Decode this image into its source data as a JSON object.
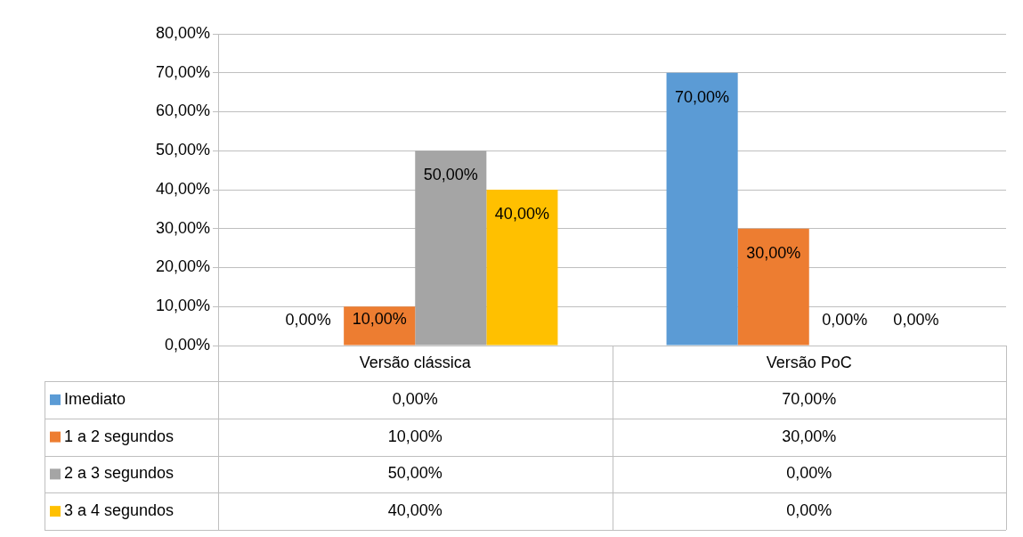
{
  "chart_data": {
    "type": "bar",
    "categories": [
      "Versão clássica",
      "Versão PoC"
    ],
    "series": [
      {
        "name": "Imediato",
        "color": "#5b9bd5",
        "values": [
          0,
          70
        ],
        "value_labels": [
          "0,00%",
          "70,00%"
        ]
      },
      {
        "name": "1 a 2 segundos",
        "color": "#ed7d31",
        "values": [
          10,
          30
        ],
        "value_labels": [
          "10,00%",
          "30,00%"
        ]
      },
      {
        "name": "2 a 3 segundos",
        "color": "#a5a5a5",
        "values": [
          50,
          0
        ],
        "value_labels": [
          "50,00%",
          "0,00%"
        ]
      },
      {
        "name": "3 a 4 segundos",
        "color": "#ffc000",
        "values": [
          40,
          0
        ],
        "value_labels": [
          "40,00%",
          "0,00%"
        ]
      }
    ],
    "ylim": [
      0,
      80
    ],
    "yticks": [
      {
        "value": 0,
        "label": "0,00%"
      },
      {
        "value": 10,
        "label": "10,00%"
      },
      {
        "value": 20,
        "label": "20,00%"
      },
      {
        "value": 30,
        "label": "30,00%"
      },
      {
        "value": 40,
        "label": "40,00%"
      },
      {
        "value": 50,
        "label": "50,00%"
      },
      {
        "value": 60,
        "label": "60,00%"
      },
      {
        "value": 70,
        "label": "70,00%"
      },
      {
        "value": 80,
        "label": "80,00%"
      }
    ],
    "grid": "y",
    "legend": "bottom"
  }
}
